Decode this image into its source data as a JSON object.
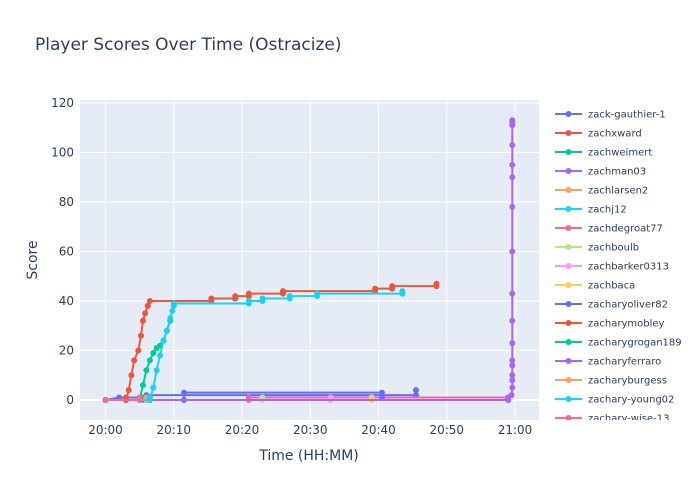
{
  "chart_data": {
    "type": "line",
    "title": "Player Scores Over Time (Ostracize)",
    "xlabel": "Time (HH:MM)",
    "ylabel": "Score",
    "xlim": [
      "20:00",
      "21:00"
    ],
    "ylim": [
      -8,
      121
    ],
    "x_ticks": [
      "20:00",
      "20:10",
      "20:20",
      "20:30",
      "20:40",
      "20:50",
      "21:00"
    ],
    "y_ticks": [
      0,
      20,
      40,
      60,
      80,
      100,
      120
    ],
    "grid": true,
    "legend_position": "right",
    "series": [
      {
        "name": "zack-gauthier-1",
        "color": "#636efa",
        "points": [
          [
            "20:00",
            0
          ],
          [
            "20:02",
            1
          ],
          [
            "20:06",
            1
          ],
          [
            "20:06",
            2
          ],
          [
            "20:45.5",
            2
          ],
          [
            "20:45.5",
            4
          ]
        ]
      },
      {
        "name": "zachxward",
        "color": "#EF553B",
        "points": [
          [
            "20:00",
            0
          ],
          [
            "20:03",
            0
          ],
          [
            "20:03.4",
            4
          ],
          [
            "20:03.8",
            10
          ],
          [
            "20:04.2",
            16
          ],
          [
            "20:04.8",
            20
          ],
          [
            "20:05.2",
            26
          ],
          [
            "20:05.5",
            32
          ],
          [
            "20:05.8",
            35
          ],
          [
            "20:06.2",
            38
          ],
          [
            "20:06.5",
            40
          ],
          [
            "20:15.5",
            40
          ],
          [
            "20:15.5",
            41
          ],
          [
            "20:19",
            41
          ],
          [
            "20:19",
            42
          ],
          [
            "20:21",
            42
          ],
          [
            "20:21",
            43
          ],
          [
            "20:26",
            43
          ],
          [
            "20:26",
            44
          ],
          [
            "20:39.5",
            44
          ],
          [
            "20:39.5",
            45
          ],
          [
            "20:42",
            45
          ],
          [
            "20:42",
            46
          ],
          [
            "20:48.5",
            46
          ],
          [
            "20:48.5",
            47
          ]
        ]
      },
      {
        "name": "zachweimert",
        "color": "#00cc96",
        "points": [
          [
            "20:00",
            0
          ],
          [
            "20:05",
            0
          ],
          [
            "20:05.5",
            6
          ],
          [
            "20:06",
            12
          ],
          [
            "20:06.5",
            16
          ],
          [
            "20:07",
            19
          ],
          [
            "20:07.5",
            21
          ],
          [
            "20:08",
            22
          ],
          [
            "20:08.5",
            24
          ],
          [
            "20:09",
            28
          ],
          [
            "20:09.5",
            32
          ]
        ]
      },
      {
        "name": "zachman03",
        "color": "#ab63fa",
        "points": [
          [
            "20:00",
            0
          ],
          [
            "20:59",
            0
          ],
          [
            "20:59.5",
            2
          ],
          [
            "20:59.6",
            5
          ],
          [
            "20:59.6",
            8
          ],
          [
            "20:59.6",
            10
          ],
          [
            "20:59.6",
            14
          ],
          [
            "20:59.6",
            16
          ],
          [
            "20:59.6",
            23
          ],
          [
            "20:59.6",
            32
          ],
          [
            "20:59.6",
            43
          ],
          [
            "20:59.6",
            60
          ],
          [
            "20:59.6",
            78
          ],
          [
            "20:59.6",
            90
          ],
          [
            "20:59.6",
            95
          ],
          [
            "20:59.6",
            103
          ],
          [
            "20:59.6",
            111
          ],
          [
            "20:59.6",
            112
          ],
          [
            "20:59.6",
            113
          ]
        ]
      },
      {
        "name": "zachlarsen2",
        "color": "#FFA15A",
        "points": [
          [
            "20:00",
            0
          ],
          [
            "20:06",
            0
          ],
          [
            "20:39",
            0
          ]
        ]
      },
      {
        "name": "zachj12",
        "color": "#19d3f3",
        "points": [
          [
            "20:00",
            0
          ],
          [
            "20:06.5",
            0
          ],
          [
            "20:07",
            5
          ],
          [
            "20:07.5",
            12
          ],
          [
            "20:08",
            18
          ],
          [
            "20:08.5",
            24
          ],
          [
            "20:09",
            28
          ],
          [
            "20:09.5",
            33
          ],
          [
            "20:09.8",
            36
          ],
          [
            "20:10",
            38
          ],
          [
            "20:10",
            39
          ],
          [
            "20:21",
            39
          ],
          [
            "20:21",
            40
          ],
          [
            "20:23",
            40
          ],
          [
            "20:23",
            41
          ],
          [
            "20:27",
            41
          ],
          [
            "20:27",
            42
          ],
          [
            "20:31",
            42
          ],
          [
            "20:31",
            43
          ],
          [
            "20:43.5",
            43
          ],
          [
            "20:43.5",
            44
          ]
        ]
      },
      {
        "name": "zachdegroat77",
        "color": "#FF6692",
        "points": [
          [
            "20:00",
            0
          ],
          [
            "20:21",
            0
          ],
          [
            "20:21",
            1
          ],
          [
            "20:59",
            1
          ]
        ]
      },
      {
        "name": "zachboulb",
        "color": "#B6E880",
        "points": [
          [
            "20:00",
            0
          ],
          [
            "20:23",
            0
          ],
          [
            "20:23",
            1
          ]
        ]
      },
      {
        "name": "zachbarker0313",
        "color": "#FF97FF",
        "points": [
          [
            "20:00",
            0
          ],
          [
            "20:33",
            0
          ],
          [
            "20:33",
            1
          ]
        ]
      },
      {
        "name": "zachbaca",
        "color": "#FECB52",
        "points": [
          [
            "20:00",
            0
          ],
          [
            "20:39",
            0
          ],
          [
            "20:39",
            1
          ]
        ]
      },
      {
        "name": "zacharyoliver82",
        "color": "#636efa",
        "points": [
          [
            "20:00",
            0
          ],
          [
            "20:11.5",
            0
          ],
          [
            "20:11.5",
            3
          ],
          [
            "20:40.5",
            3
          ],
          [
            "20:40.5",
            1
          ]
        ]
      },
      {
        "name": "zacharymobley",
        "color": "#EF553B",
        "points": [
          [
            "20:00",
            0
          ],
          [
            "20:03",
            0
          ],
          [
            "20:03",
            1
          ]
        ]
      },
      {
        "name": "zacharygrogan189",
        "color": "#00cc96",
        "points": [
          [
            "20:00",
            0
          ],
          [
            "20:05.5",
            0
          ],
          [
            "20:05.5",
            1
          ]
        ]
      },
      {
        "name": "zacharyferraro",
        "color": "#ab63fa",
        "points": [
          [
            "20:00",
            0
          ],
          [
            "20:59",
            0
          ],
          [
            "20:59",
            1
          ]
        ]
      },
      {
        "name": "zacharyburgess",
        "color": "#FFA15A",
        "points": [
          [
            "20:00",
            0
          ],
          [
            "20:06",
            0
          ],
          [
            "20:06",
            1
          ]
        ]
      },
      {
        "name": "zachary-young02",
        "color": "#19d3f3",
        "points": [
          [
            "20:00",
            0
          ],
          [
            "20:06.5",
            0
          ],
          [
            "20:06.5",
            1
          ]
        ]
      },
      {
        "name": "zachary-wise-13",
        "color": "#FF6692",
        "points": [
          [
            "20:00",
            0
          ],
          [
            "20:05",
            0
          ],
          [
            "20:05",
            1
          ]
        ]
      }
    ]
  }
}
